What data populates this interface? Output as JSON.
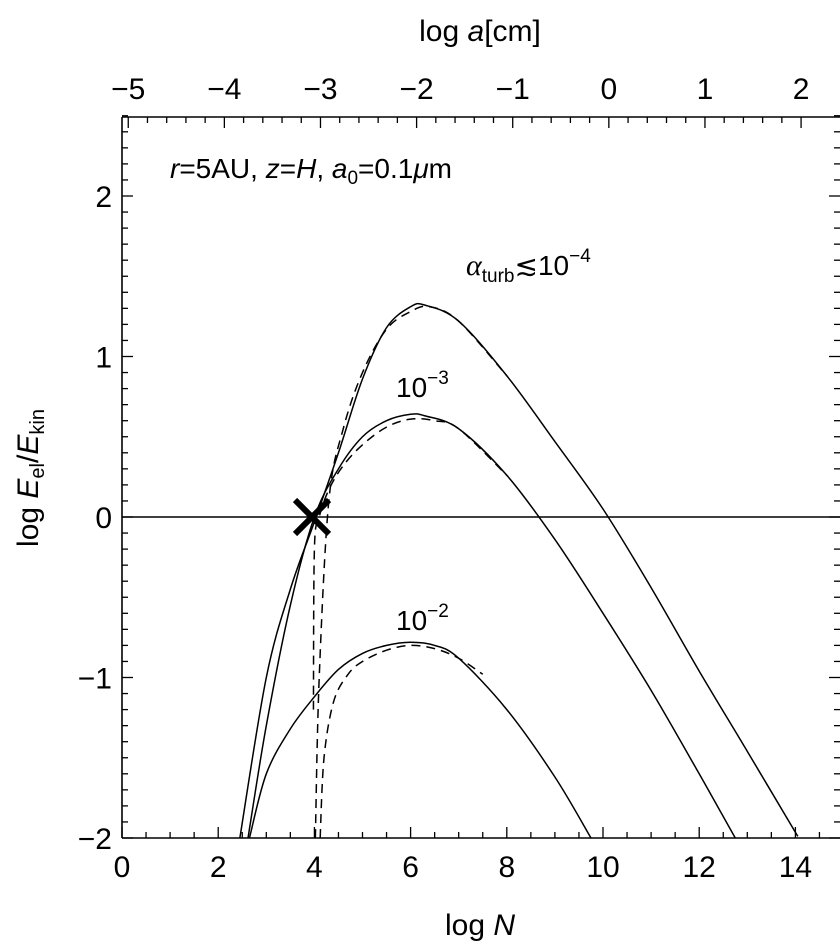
{
  "chart_data": {
    "type": "line",
    "x_axis": {
      "label_parts": [
        "log ",
        "N"
      ],
      "range": [
        0,
        15
      ],
      "major_ticks": [
        0,
        2,
        4,
        6,
        8,
        10,
        12,
        14
      ]
    },
    "x_axis_top": {
      "label_parts": [
        "log ",
        "a",
        "[cm]"
      ],
      "range": [
        -5.065,
        2.405
      ],
      "major_ticks": [
        -5,
        -4,
        -3,
        -2,
        -1,
        0,
        1,
        2
      ],
      "tick_labels": [
        "−5",
        "−4",
        "−3",
        "−2",
        "−1",
        "0",
        "1",
        "2"
      ]
    },
    "y_axis": {
      "label_parts": [
        "log ",
        "E",
        "el",
        "/",
        "E",
        "kin"
      ],
      "range": [
        -2,
        2.5
      ],
      "major_ticks": [
        -2,
        -1,
        0,
        1,
        2
      ],
      "tick_labels": [
        "−2",
        "−1",
        "0",
        "1",
        "2"
      ]
    },
    "reference_line_y": 0,
    "annotations": {
      "params": {
        "r": "r",
        "r_val": "=5AU, ",
        "z": "z",
        "z_val": "=",
        "H": "H",
        "sep": ", ",
        "a": "a",
        "a_sub": "0",
        "a_val": "=0.1",
        "mu": "μ",
        "m": "m"
      },
      "alpha_symbol": "α",
      "alpha_sub": "turb",
      "alpha_rel": "≲10",
      "alpha_exp": "−4",
      "base": "10",
      "exp_3": "−3",
      "exp_2": "−2"
    },
    "series": [
      {
        "alpha": "1e-4",
        "style": "solid",
        "x": [
          2.45,
          3.0,
          3.5,
          4.0,
          4.5,
          5.0,
          5.5,
          6.0,
          6.3,
          7.0,
          8.0,
          9.0,
          10.0,
          11.0,
          12.0,
          13.0,
          14.05
        ],
        "y": [
          -2.0,
          -1.0,
          -0.45,
          -0.03,
          0.4,
          0.86,
          1.18,
          1.31,
          1.32,
          1.22,
          0.88,
          0.47,
          0.05,
          -0.44,
          -0.96,
          -1.46,
          -1.99
        ]
      },
      {
        "alpha": "1e-4",
        "style": "dashed",
        "x": [
          4.02,
          4.1,
          4.3,
          4.6,
          5.0,
          5.5,
          6.0,
          6.4,
          7.0,
          8.0
        ],
        "y": [
          -2.0,
          -1.0,
          0.1,
          0.55,
          0.9,
          1.17,
          1.28,
          1.31,
          1.22,
          0.88
        ]
      },
      {
        "alpha": "1e-3",
        "style": "solid",
        "x": [
          2.62,
          3.0,
          3.5,
          4.0,
          4.5,
          5.0,
          5.5,
          6.0,
          6.3,
          7.0,
          8.0,
          9.0,
          10.0,
          11.0,
          12.0,
          12.75
        ],
        "y": [
          -2.0,
          -1.3,
          -0.55,
          0.0,
          0.3,
          0.5,
          0.6,
          0.64,
          0.63,
          0.55,
          0.26,
          -0.14,
          -0.6,
          -1.08,
          -1.6,
          -2.0
        ]
      },
      {
        "alpha": "1e-3",
        "style": "dashed",
        "x": [
          3.98,
          4.0,
          4.1,
          4.3,
          4.6,
          5.0,
          5.5,
          6.0,
          6.5,
          7.0,
          8.0
        ],
        "y": [
          -1.2,
          -0.2,
          0.0,
          0.17,
          0.32,
          0.45,
          0.56,
          0.61,
          0.6,
          0.55,
          0.26
        ]
      },
      {
        "alpha": "1e-2",
        "style": "solid",
        "x": [
          2.65,
          3.0,
          3.5,
          4.0,
          4.5,
          5.0,
          5.5,
          6.0,
          6.5,
          7.0,
          8.0,
          9.0,
          9.75
        ],
        "y": [
          -2.0,
          -1.6,
          -1.32,
          -1.12,
          -0.95,
          -0.85,
          -0.8,
          -0.78,
          -0.8,
          -0.88,
          -1.2,
          -1.62,
          -2.0
        ]
      },
      {
        "alpha": "1e-2",
        "style": "dashed",
        "x": [
          4.12,
          4.2,
          4.4,
          4.7,
          5.0,
          5.5,
          6.0,
          6.5,
          7.0,
          7.5
        ],
        "y": [
          -2.0,
          -1.5,
          -1.15,
          -0.98,
          -0.9,
          -0.83,
          -0.8,
          -0.82,
          -0.88,
          -0.98
        ]
      }
    ],
    "marker": {
      "type": "cross",
      "x": 3.95,
      "y": 0.0
    }
  }
}
